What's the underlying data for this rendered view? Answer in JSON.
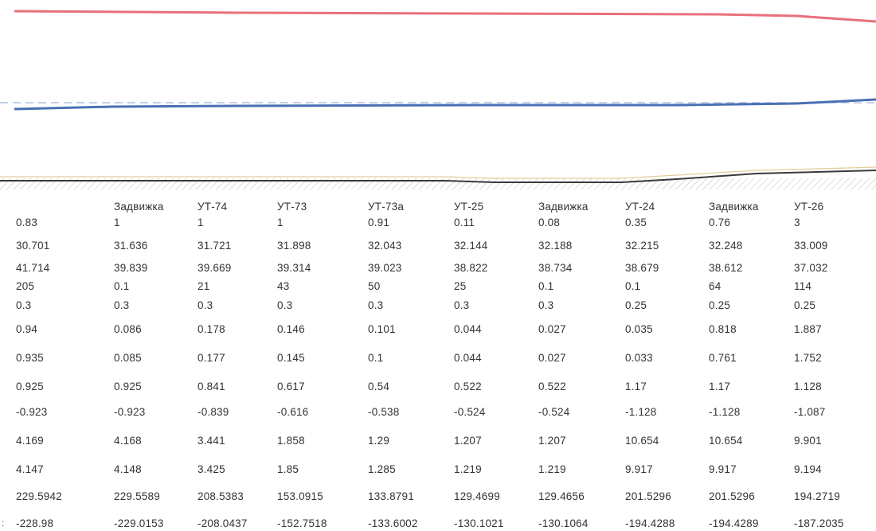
{
  "chart_data": {
    "type": "line",
    "stations": [
      "",
      "Задвижка",
      "УТ-74",
      "УТ-73",
      "УТ-73а",
      "УТ-25",
      "Задвижка",
      "УТ-24",
      "Задвижка",
      "УТ-26"
    ],
    "series": [
      {
        "color": "#e8707a"
      },
      {
        "color": "#4a6fb5"
      },
      {
        "color": "#3a3a3a"
      }
    ],
    "rows": [
      [
        "0.83",
        "1",
        "1",
        "1",
        "0.91",
        "0.11",
        "0.08",
        "0.35",
        "0.76",
        "3"
      ],
      [
        "30.701",
        "31.636",
        "31.721",
        "31.898",
        "32.043",
        "32.144",
        "32.188",
        "32.215",
        "32.248",
        "33.009"
      ],
      [
        "41.714",
        "39.839",
        "39.669",
        "39.314",
        "39.023",
        "38.822",
        "38.734",
        "38.679",
        "38.612",
        "37.032"
      ],
      [
        "205",
        "0.1",
        "21",
        "43",
        "50",
        "25",
        "0.1",
        "0.1",
        "64",
        "114"
      ],
      [
        "0.3",
        "0.3",
        "0.3",
        "0.3",
        "0.3",
        "0.3",
        "0.3",
        "0.25",
        "0.25",
        "0.25"
      ],
      [
        "0.94",
        "0.086",
        "0.178",
        "0.146",
        "0.101",
        "0.044",
        "0.027",
        "0.035",
        "0.818",
        "1.887"
      ],
      [
        "0.935",
        "0.085",
        "0.177",
        "0.145",
        "0.1",
        "0.044",
        "0.027",
        "0.033",
        "0.761",
        "1.752"
      ],
      [
        "0.925",
        "0.925",
        "0.841",
        "0.617",
        "0.54",
        "0.522",
        "0.522",
        "1.17",
        "1.17",
        "1.128"
      ],
      [
        "-0.923",
        "-0.923",
        "-0.839",
        "-0.616",
        "-0.538",
        "-0.524",
        "-0.524",
        "-1.128",
        "-1.128",
        "-1.087"
      ],
      [
        "4.169",
        "4.168",
        "3.441",
        "1.858",
        "1.29",
        "1.207",
        "1.207",
        "10.654",
        "10.654",
        "9.901"
      ],
      [
        "4.147",
        "4.148",
        "3.425",
        "1.85",
        "1.285",
        "1.219",
        "1.219",
        "9.917",
        "9.917",
        "9.194"
      ],
      [
        "229.5942",
        "229.5589",
        "208.5383",
        "153.0915",
        "133.8791",
        "129.4699",
        "129.4656",
        "201.5296",
        "201.5296",
        "194.2719"
      ],
      [
        "-228.98",
        "-229.0153",
        "-208.0437",
        "-152.7518",
        "-133.6002",
        "-130.1021",
        "-130.1064",
        "-194.4288",
        "-194.4289",
        "-187.2035"
      ]
    ],
    "row_mark": ":"
  }
}
